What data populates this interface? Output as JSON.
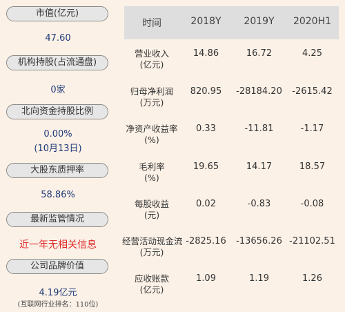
{
  "left_panel": {
    "items": [
      {
        "label": "市值(亿元)",
        "value": "47.60"
      },
      {
        "label": "机构持股(占流通盘)",
        "value": "0家"
      },
      {
        "label": "北向资金持股比例",
        "value": "0.00%",
        "value2": "(10月13日)"
      },
      {
        "label": "大股东质押率",
        "value": "58.86%"
      },
      {
        "label": "最新监管情况",
        "value": "近一年无相关信息"
      },
      {
        "label": "公司品牌价值",
        "value": "4.19亿元",
        "value2": "(互联网行业排名：110位)"
      }
    ]
  },
  "table": {
    "headers": [
      "时间",
      "2018Y",
      "2019Y",
      "2020H1"
    ],
    "rows": [
      {
        "label1": "营业收入",
        "label2": "(亿元)",
        "values": [
          "14.86",
          "16.72",
          "4.25"
        ]
      },
      {
        "label1": "归母净利润",
        "label2": "(万元)",
        "values": [
          "820.95",
          "-28184.20",
          "-2615.42"
        ]
      },
      {
        "label1": "净资产收益率",
        "label2": "(%)",
        "values": [
          "0.33",
          "-11.81",
          "-1.17"
        ]
      },
      {
        "label1": "毛利率",
        "label2": "(%)",
        "values": [
          "19.65",
          "14.17",
          "18.57"
        ]
      },
      {
        "label1": "每股收益",
        "label2": "(元)",
        "values": [
          "0.02",
          "-0.83",
          "-0.08"
        ]
      },
      {
        "label1": "经营活动现金流",
        "label2": "(万元)",
        "values": [
          "-2825.16",
          "-13656.26",
          "-21102.51"
        ]
      },
      {
        "label1": "应收账款",
        "label2": "(亿元)",
        "values": [
          "1.09",
          "1.19",
          "1.26"
        ]
      }
    ]
  }
}
